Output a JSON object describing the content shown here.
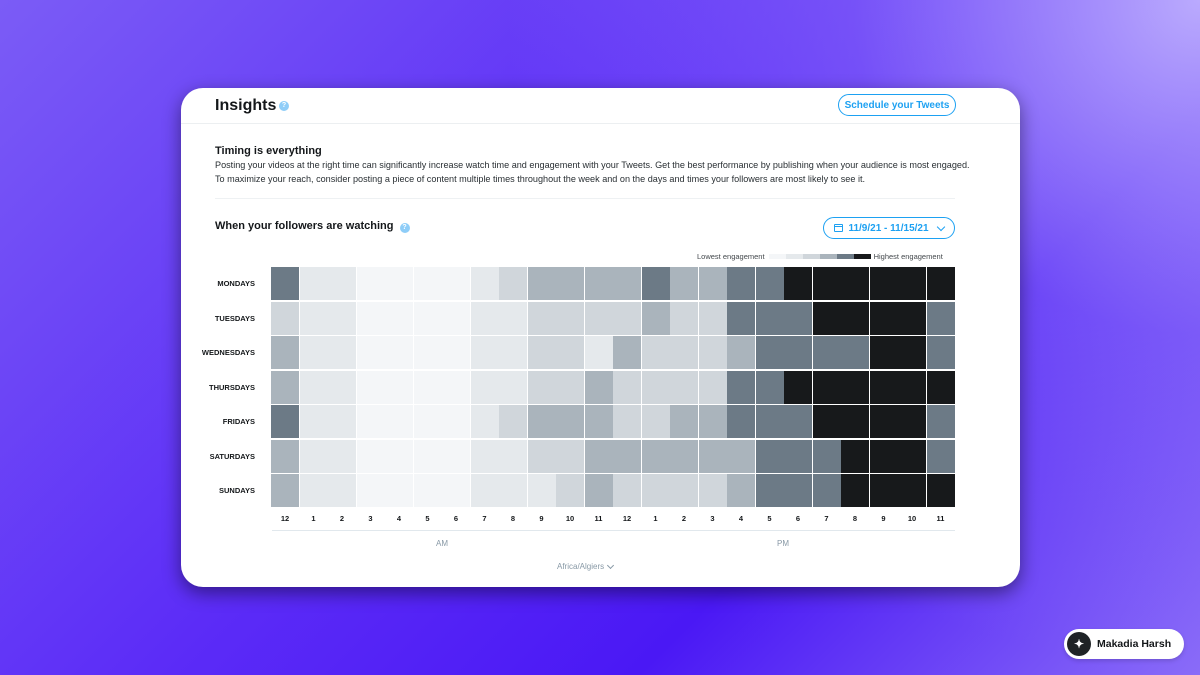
{
  "card": {
    "title": "Insights",
    "schedule_label": "Schedule your Tweets",
    "timing_title": "Timing is everything",
    "timing_body": "Posting your videos at the right time can significantly increase watch time and engagement with your Tweets. Get the best performance by publishing when your audience is most engaged. To maximize your reach, consider posting a piece of content multiple times throughout the week and on the days and times your followers are most likely to see it.",
    "watch_title": "When your followers are watching",
    "date_range": "11/9/21 - 11/15/21",
    "legend_low": "Lowest engagement",
    "legend_high": "Highest engagement",
    "am_label": "AM",
    "pm_label": "PM",
    "timezone": "Africa/Algiers"
  },
  "badge": {
    "name": "Makadia Harsh"
  },
  "colors": {
    "levels": [
      "#f4f6f8",
      "#e5e9ec",
      "#d0d6db",
      "#aab4bc",
      "#6c7a86",
      "#17191b"
    ],
    "accent": "#1da1f2"
  },
  "chart_data": {
    "type": "heatmap",
    "x": [
      "12",
      "1",
      "2",
      "3",
      "4",
      "5",
      "6",
      "7",
      "8",
      "9",
      "10",
      "11",
      "12",
      "1",
      "2",
      "3",
      "4",
      "5",
      "6",
      "7",
      "8",
      "9",
      "10",
      "11"
    ],
    "y": [
      "MONDAYS",
      "TUESDAYS",
      "WEDNESDAYS",
      "THURSDAYS",
      "FRIDAYS",
      "SATURDAYS",
      "SUNDAYS"
    ],
    "scale": "0 = lowest engagement, 5 = highest engagement",
    "values": [
      [
        4,
        1,
        1,
        0,
        0,
        0,
        0,
        1,
        2,
        3,
        3,
        3,
        3,
        4,
        3,
        3,
        4,
        4,
        5,
        5,
        5,
        5,
        5,
        5
      ],
      [
        2,
        1,
        1,
        0,
        0,
        0,
        0,
        1,
        1,
        2,
        2,
        2,
        2,
        3,
        2,
        2,
        4,
        4,
        4,
        5,
        5,
        5,
        5,
        4
      ],
      [
        3,
        1,
        1,
        0,
        0,
        0,
        0,
        1,
        1,
        2,
        2,
        1,
        3,
        2,
        2,
        2,
        3,
        4,
        4,
        4,
        4,
        5,
        5,
        4
      ],
      [
        3,
        1,
        1,
        0,
        0,
        0,
        0,
        1,
        1,
        2,
        2,
        3,
        2,
        2,
        2,
        2,
        4,
        4,
        5,
        5,
        5,
        5,
        5,
        5
      ],
      [
        4,
        1,
        1,
        0,
        0,
        0,
        0,
        1,
        2,
        3,
        3,
        3,
        2,
        2,
        3,
        3,
        4,
        4,
        4,
        5,
        5,
        5,
        5,
        4
      ],
      [
        3,
        1,
        1,
        0,
        0,
        0,
        0,
        1,
        1,
        2,
        2,
        3,
        3,
        3,
        3,
        3,
        3,
        4,
        4,
        4,
        5,
        5,
        5,
        4
      ],
      [
        3,
        1,
        1,
        0,
        0,
        0,
        0,
        1,
        1,
        1,
        2,
        3,
        2,
        2,
        2,
        2,
        3,
        4,
        4,
        4,
        5,
        5,
        5,
        5
      ]
    ]
  }
}
